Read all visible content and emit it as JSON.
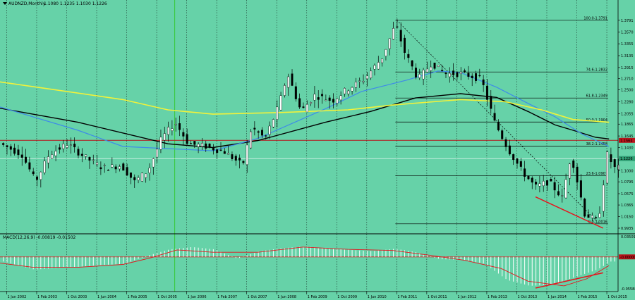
{
  "symbol_header": {
    "symbol": "AUDNZD,Monthly",
    "ohlc_text": "1.1080 1.1235 1.1030 1.1226"
  },
  "colors": {
    "background": "#66D2A8",
    "bull_candle": "#FFFFFF",
    "bear_candle": "#000000",
    "ma_black": "#000000",
    "ma_blue": "#3E8BE8",
    "ma_yellow": "#F2F23A",
    "red_line": "#E8101A",
    "price_tag_red": "#B8141A",
    "price_tag_green": "#2E9D72",
    "grid": "#000000",
    "period_line": "#34C834"
  },
  "chart_data": [
    {
      "type": "candlestick",
      "title": "AUDNZD,Monthly",
      "ylim": [
        0.9935,
        1.3945
      ],
      "price_ticks": [
        "1.3791",
        "1.3570",
        "1.3355",
        "1.3135",
        "1.2915",
        "1.2710",
        "1.2500",
        "1.2280",
        "1.2055",
        "1.1865",
        "1.1645",
        "1.1430",
        "1.1215",
        "1.1000",
        "1.0795",
        "1.0575",
        "1.0365",
        "1.0150",
        "0.9935"
      ],
      "x_ticks": [
        "1 Jun 2002",
        "1 Feb 2003",
        "1 Oct 2003",
        "1 Jun 2004",
        "1 Feb 2005",
        "1 Oct 2005",
        "1 Jun 2006",
        "1 Feb 2007",
        "1 Oct 2007",
        "1 Jun 2008",
        "1 Feb 2009",
        "1 Oct 2009",
        "1 Jun 2010",
        "1 Feb 2011",
        "1 Oct 2011",
        "1 Jun 2012",
        "1 Feb 2013",
        "1 Oct 2013",
        "1 Jun 2014",
        "1 Feb 2015",
        "1 Oct 2015"
      ],
      "current_price": 1.1226,
      "resistance_price": 1.1564,
      "fibonacci_levels": [
        {
          "label": "100.0-1.3791",
          "price": 1.3791
        },
        {
          "label": "74.6-1.2832",
          "price": 1.2832
        },
        {
          "label": "61.8-1.2349",
          "price": 1.2349
        },
        {
          "label": "50.0-1.1904",
          "price": 1.1904
        },
        {
          "label": "38.2-1.1458",
          "price": 1.1458
        },
        {
          "label": "23.6-1.0907",
          "price": 1.0907
        },
        {
          "label": "0.0-1.0016",
          "price": 1.0016
        }
      ],
      "fib_anchor_high": {
        "date": "2011-02",
        "price": 1.3791
      },
      "fib_anchor_low": {
        "date": "2015-08",
        "price": 1.0016
      },
      "divergence_price_line": {
        "from": {
          "date": "2014-03",
          "price": 1.0515
        },
        "to": {
          "date": "2015-09",
          "price": 0.9935
        }
      },
      "series": [
        {
          "name": "MA black",
          "values": [
            [
              2002,
              1.22
            ],
            [
              2004,
              1.19
            ],
            [
              2006,
              1.15
            ],
            [
              2007,
              1.143
            ],
            [
              2008,
              1.156
            ],
            [
              2009.5,
              1.19
            ],
            [
              2010.5,
              1.21
            ],
            [
              2011.5,
              1.235
            ],
            [
              2012.5,
              1.243
            ],
            [
              2013.3,
              1.236
            ],
            [
              2014,
              1.21
            ],
            [
              2014.6,
              1.185
            ],
            [
              2015,
              1.175
            ],
            [
              2015.5,
              1.162
            ],
            [
              2015.8,
              1.159
            ]
          ]
        },
        {
          "name": "MA blue",
          "values": [
            [
              2002,
              1.225
            ],
            [
              2004,
              1.175
            ],
            [
              2005,
              1.145
            ],
            [
              2007,
              1.137
            ],
            [
              2008,
              1.16
            ],
            [
              2009.5,
              1.215
            ],
            [
              2010.3,
              1.247
            ],
            [
              2011.3,
              1.268
            ],
            [
              2012,
              1.285
            ],
            [
              2012.5,
              1.282
            ],
            [
              2013.3,
              1.255
            ],
            [
              2014,
              1.225
            ],
            [
              2014.6,
              1.2
            ],
            [
              2015.2,
              1.168
            ],
            [
              2015.8,
              1.145
            ]
          ]
        },
        {
          "name": "MA yellow",
          "values": [
            [
              2002,
              1.268
            ],
            [
              2003.5,
              1.25
            ],
            [
              2005,
              1.232
            ],
            [
              2006,
              1.213
            ],
            [
              2007,
              1.205
            ],
            [
              2008.5,
              1.208
            ],
            [
              2010,
              1.213
            ],
            [
              2011,
              1.222
            ],
            [
              2012.5,
              1.232
            ],
            [
              2013.5,
              1.228
            ],
            [
              2014.3,
              1.213
            ],
            [
              2015,
              1.195
            ],
            [
              2015.8,
              1.19
            ]
          ]
        }
      ]
    },
    {
      "type": "bar",
      "title": "MACD(12,26,9) -0.00819 -0.01502",
      "ylim": [
        -0.055,
        0.035
      ],
      "ticks": [
        "0.03509",
        "-0.00000",
        "-0.05588"
      ],
      "current_tag": "-0.00000",
      "signal_line_color": "#E8101A",
      "divergence_line": {
        "from": {
          "date": "2014-03",
          "value": -0.0538
        },
        "to": {
          "date": "2015-09",
          "value": -0.0275
        }
      },
      "histogram_points": [
        [
          2002,
          -0.002
        ],
        [
          2002.5,
          -0.012
        ],
        [
          2003,
          -0.022
        ],
        [
          2003.5,
          -0.019
        ],
        [
          2004,
          -0.017
        ],
        [
          2004.5,
          -0.014
        ],
        [
          2005,
          -0.012
        ],
        [
          2005.5,
          0.002
        ],
        [
          2006,
          0.013
        ],
        [
          2006.5,
          0.017
        ],
        [
          2007,
          0.013
        ],
        [
          2007.5,
          -0.003
        ],
        [
          2008,
          0.01
        ],
        [
          2008.5,
          0.015
        ],
        [
          2009,
          0.018
        ],
        [
          2009.5,
          0.015
        ],
        [
          2010,
          0.012
        ],
        [
          2010.5,
          0.01
        ],
        [
          2011,
          0.014
        ],
        [
          2011.5,
          0.008
        ],
        [
          2012,
          -0.004
        ],
        [
          2012.5,
          -0.005
        ],
        [
          2013,
          -0.012
        ],
        [
          2013.5,
          -0.04
        ],
        [
          2014,
          -0.05
        ],
        [
          2014.5,
          -0.048
        ],
        [
          2015,
          -0.035
        ],
        [
          2015.5,
          -0.022
        ],
        [
          2015.8,
          -0.008
        ]
      ],
      "signal_points": [
        [
          2002,
          -0.008
        ],
        [
          2003,
          -0.018
        ],
        [
          2004,
          -0.018
        ],
        [
          2005,
          -0.013
        ],
        [
          2005.6,
          -0.002
        ],
        [
          2006.2,
          0.012
        ],
        [
          2007,
          0.008
        ],
        [
          2008,
          0.008
        ],
        [
          2009,
          0.017
        ],
        [
          2010,
          0.013
        ],
        [
          2011,
          0.011
        ],
        [
          2011.8,
          0.003
        ],
        [
          2012.6,
          -0.006
        ],
        [
          2013.4,
          -0.02
        ],
        [
          2014,
          -0.042
        ],
        [
          2014.8,
          -0.05
        ],
        [
          2015.3,
          -0.038
        ],
        [
          2015.8,
          -0.015
        ]
      ]
    }
  ]
}
